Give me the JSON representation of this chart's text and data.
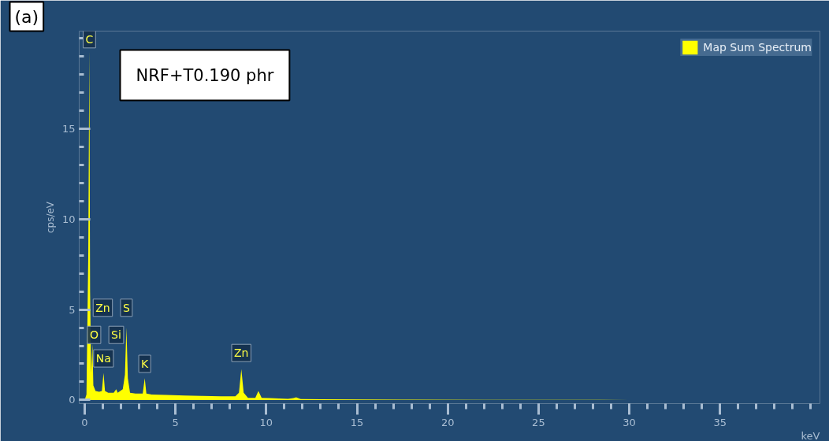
{
  "chart_data": {
    "type": "area",
    "xlabel": "keV",
    "ylabel": "cps/eV",
    "x": [
      0,
      0.1,
      0.2,
      0.26,
      0.3,
      0.36,
      0.43,
      0.48,
      0.6,
      0.8,
      0.95,
      1.04,
      1.12,
      1.3,
      1.6,
      1.74,
      1.82,
      2.1,
      2.22,
      2.3,
      2.38,
      2.5,
      2.8,
      3.2,
      3.31,
      3.4,
      3.7,
      4.5,
      5.5,
      6.5,
      7.5,
      8.3,
      8.5,
      8.63,
      8.76,
      9.0,
      9.4,
      9.57,
      9.75,
      10.2,
      11.2,
      11.5,
      11.65,
      11.9,
      13,
      15,
      18,
      22,
      30,
      40.4
    ],
    "series": [
      {
        "name": "Map Sum Spectrum",
        "color": "#ffff00",
        "values": [
          0,
          0.3,
          8,
          19.4,
          6,
          1.5,
          3.1,
          0.8,
          0.5,
          0.45,
          0.5,
          1.5,
          0.5,
          0.4,
          0.4,
          0.6,
          0.4,
          0.6,
          1.4,
          4.0,
          1.2,
          0.4,
          0.35,
          0.35,
          1.2,
          0.35,
          0.3,
          0.28,
          0.25,
          0.22,
          0.2,
          0.2,
          0.4,
          1.7,
          0.4,
          0.12,
          0.12,
          0.5,
          0.12,
          0.1,
          0.06,
          0.1,
          0.15,
          0.05,
          0.04,
          0.03,
          0.02,
          0.01,
          0,
          0
        ]
      }
    ],
    "xlim": [
      -0.3,
      40.5
    ],
    "ylim": [
      -0.2,
      20.4
    ],
    "xticks": [
      0,
      5,
      10,
      15,
      20,
      25,
      30,
      35
    ],
    "yticks": [
      0,
      5,
      10,
      15
    ],
    "grid": false,
    "legend": "top right",
    "annotations": [
      {
        "text": "C",
        "x": 0.26,
        "y": 19.95
      },
      {
        "text": "Zn",
        "x": 1.0,
        "y": 5.1
      },
      {
        "text": "S",
        "x": 2.3,
        "y": 5.1
      },
      {
        "text": "O",
        "x": 0.52,
        "y": 3.6
      },
      {
        "text": "Si",
        "x": 1.74,
        "y": 3.6
      },
      {
        "text": "Na",
        "x": 1.04,
        "y": 2.3
      },
      {
        "text": "K",
        "x": 3.31,
        "y": 2.0
      },
      {
        "text": "Zn",
        "x": 8.63,
        "y": 2.6
      },
      "(a)",
      "NRF+T0.190 phr"
    ]
  }
}
